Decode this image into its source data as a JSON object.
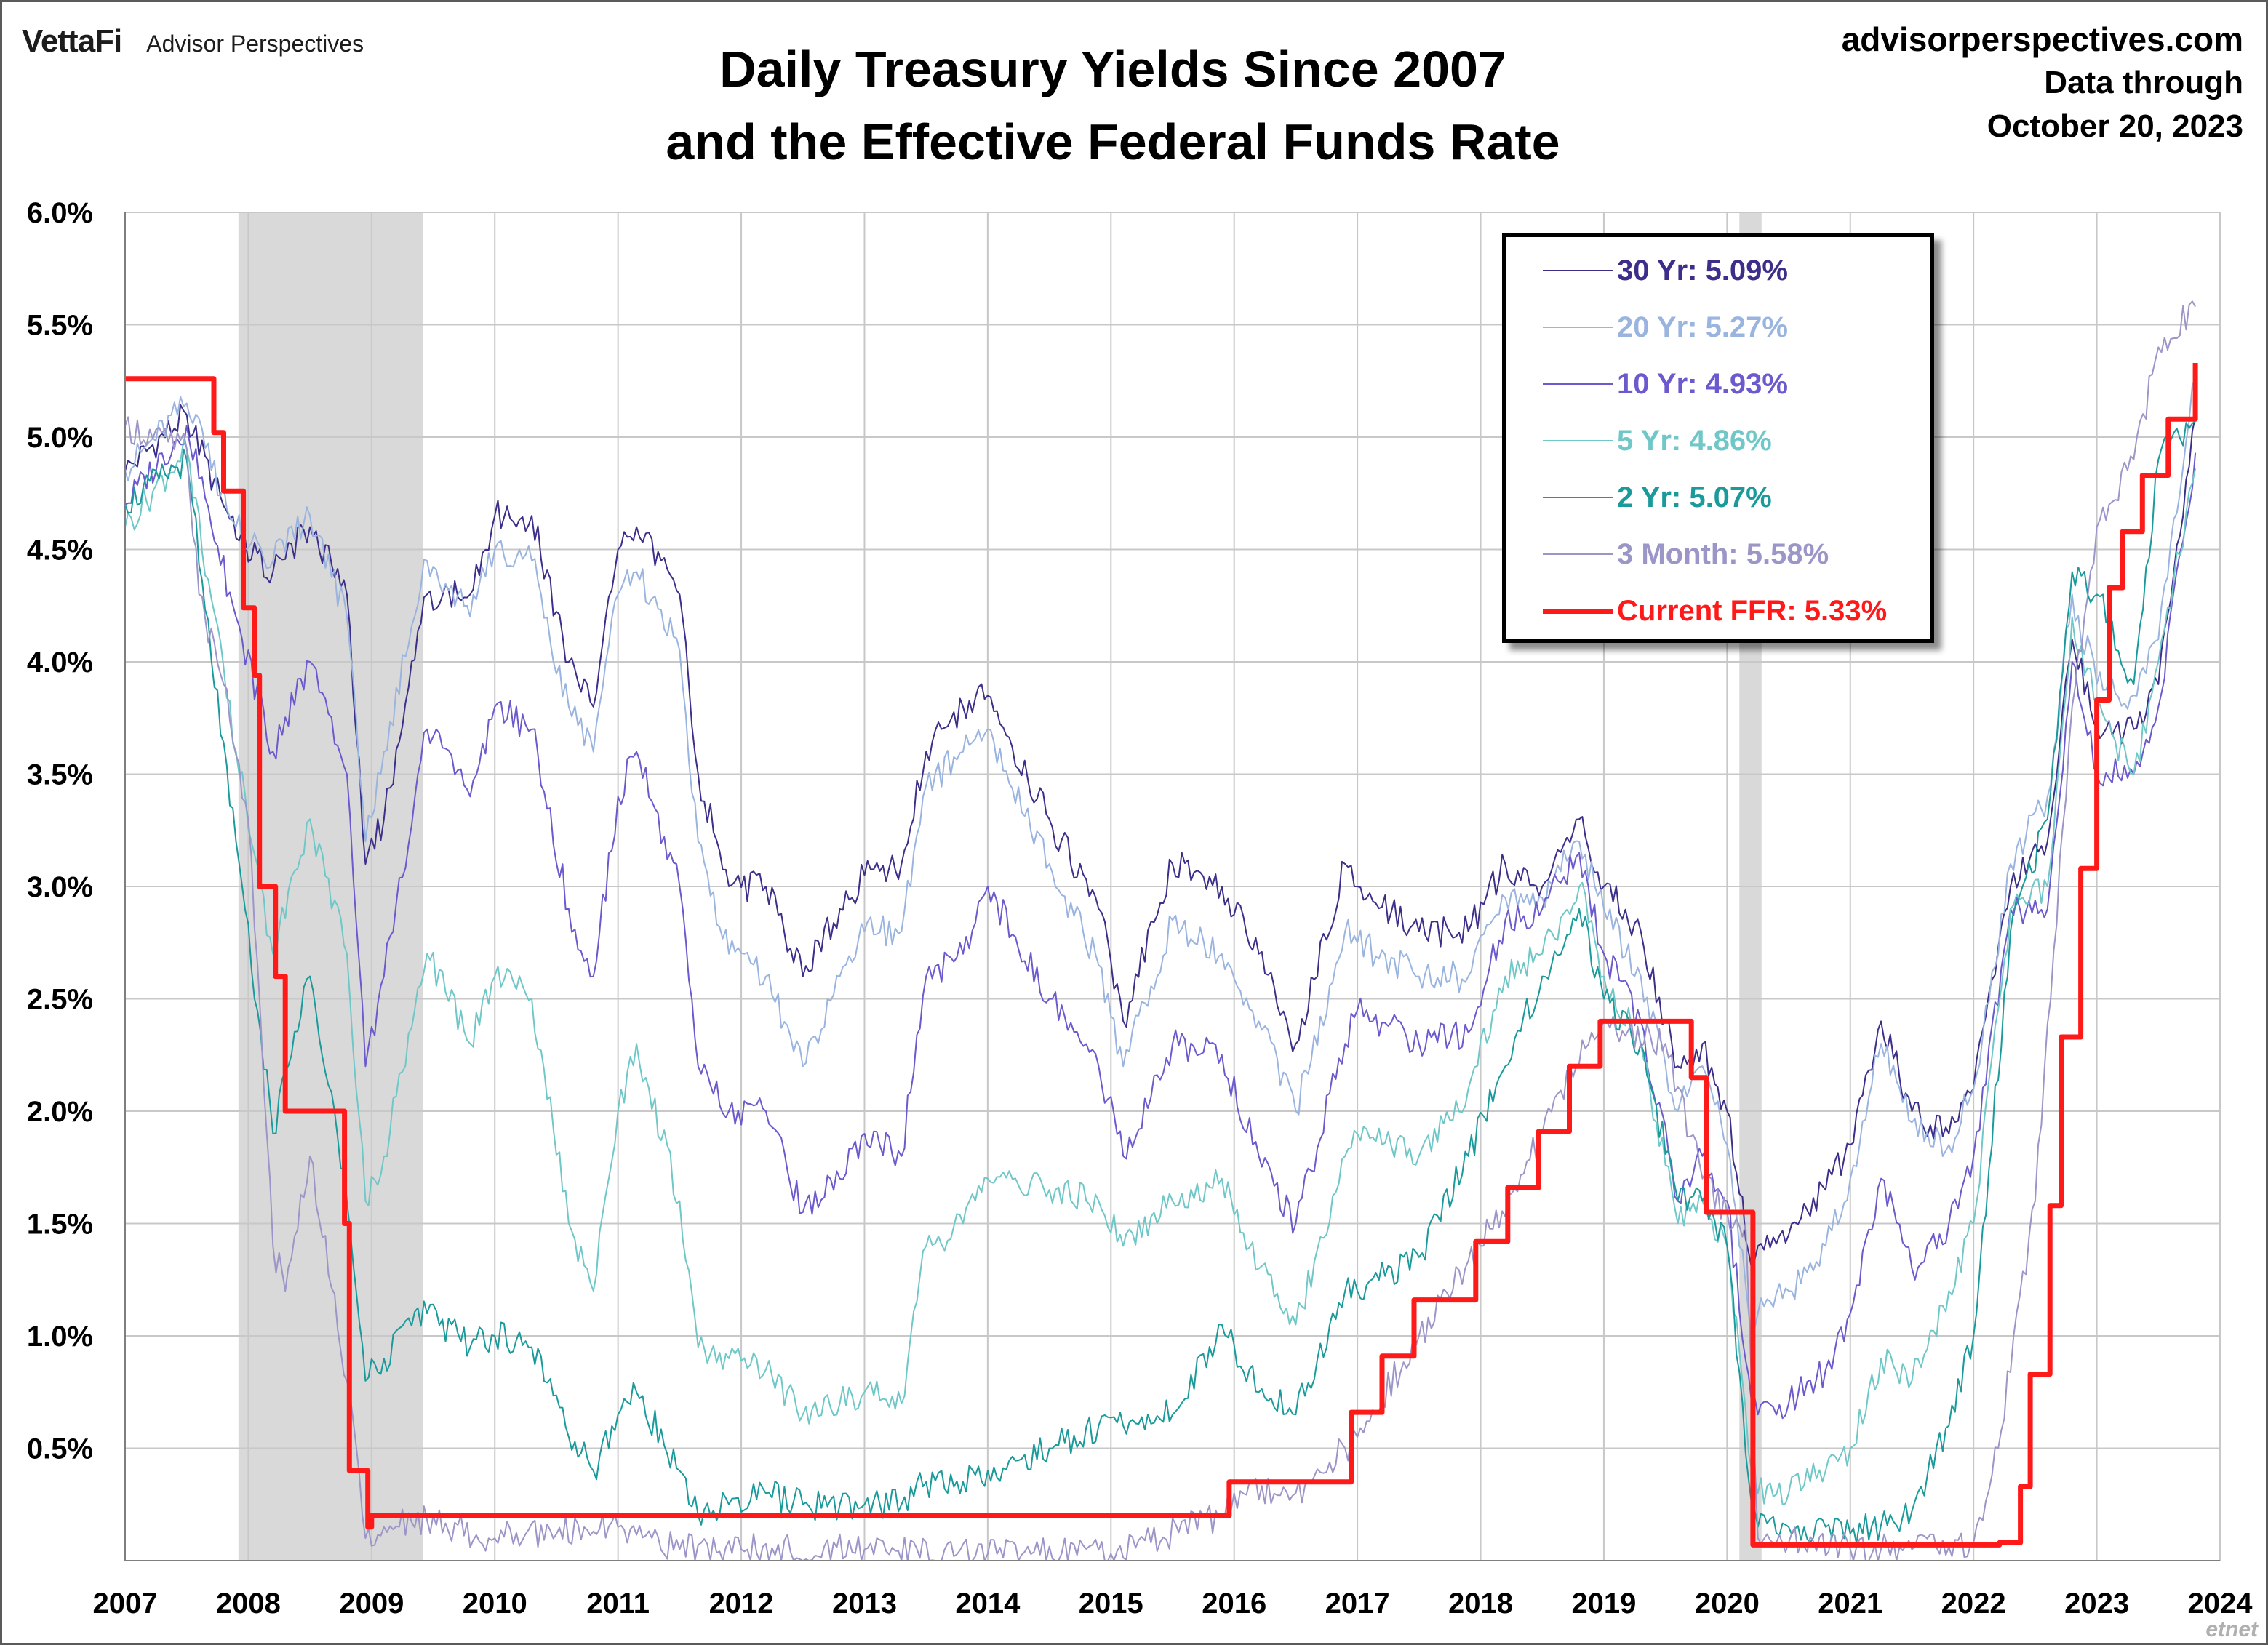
{
  "header": {
    "brand_name": "VettaFi",
    "brand_sub": "Advisor Perspectives",
    "title_line1": "Daily Treasury Yields Since 2007",
    "title_line2": "and the Effective Federal Funds Rate",
    "source_site": "advisorperspectives.com",
    "source_line2": "Data through",
    "source_line3": "October 20, 2023"
  },
  "watermark": "etnet",
  "chart_data": {
    "type": "line",
    "title": "Daily Treasury Yields Since 2007 and the Effective Federal Funds Rate",
    "xlabel": "",
    "ylabel": "",
    "xlim": [
      2007,
      2024
    ],
    "ylim": [
      0,
      6
    ],
    "x_ticks": [
      "2007",
      "2008",
      "2009",
      "2010",
      "2011",
      "2012",
      "2013",
      "2014",
      "2015",
      "2016",
      "2017",
      "2018",
      "2019",
      "2020",
      "2021",
      "2022",
      "2023",
      "2024"
    ],
    "y_ticks": [
      {
        "value": 0.5,
        "label": "0.5%"
      },
      {
        "value": 1.0,
        "label": "1.0%"
      },
      {
        "value": 1.5,
        "label": "1.5%"
      },
      {
        "value": 2.0,
        "label": "2.0%"
      },
      {
        "value": 2.5,
        "label": "2.5%"
      },
      {
        "value": 3.0,
        "label": "3.0%"
      },
      {
        "value": 3.5,
        "label": "3.5%"
      },
      {
        "value": 4.0,
        "label": "4.0%"
      },
      {
        "value": 4.5,
        "label": "4.5%"
      },
      {
        "value": 5.0,
        "label": "5.0%"
      },
      {
        "value": 5.5,
        "label": "5.5%"
      },
      {
        "value": 6.0,
        "label": "6.0%"
      }
    ],
    "grid": true,
    "legend_position": "top-right",
    "recessions": [
      [
        2007.92,
        2009.42
      ],
      [
        2020.1,
        2020.28
      ]
    ],
    "series": [
      {
        "name": "30 Yr: 5.09%",
        "color": "#3b2f8a",
        "width": 2,
        "x": [
          2007.0,
          2007.5,
          2007.9,
          2008.2,
          2008.5,
          2008.8,
          2008.95,
          2009.1,
          2009.45,
          2009.8,
          2010.0,
          2010.3,
          2010.6,
          2010.8,
          2011.0,
          2011.15,
          2011.5,
          2011.65,
          2011.9,
          2012.2,
          2012.5,
          2012.8,
          2013.0,
          2013.3,
          2013.5,
          2013.8,
          2014.0,
          2014.5,
          2014.9,
          2015.1,
          2015.5,
          2015.9,
          2016.2,
          2016.5,
          2016.9,
          2017.0,
          2017.5,
          2017.9,
          2018.2,
          2018.5,
          2018.8,
          2019.0,
          2019.3,
          2019.6,
          2019.8,
          2020.0,
          2020.2,
          2020.25,
          2020.5,
          2020.8,
          2021.0,
          2021.25,
          2021.5,
          2021.8,
          2022.0,
          2022.3,
          2022.6,
          2022.8,
          2023.0,
          2023.3,
          2023.5,
          2023.8
        ],
        "y": [
          4.85,
          5.1,
          4.55,
          4.4,
          4.6,
          4.3,
          3.1,
          3.3,
          4.3,
          4.3,
          4.65,
          4.65,
          4.0,
          3.8,
          4.5,
          4.6,
          4.3,
          3.5,
          3.0,
          3.0,
          2.6,
          2.9,
          3.05,
          3.1,
          3.6,
          3.8,
          3.85,
          3.3,
          2.9,
          2.4,
          3.1,
          3.0,
          2.7,
          2.3,
          3.1,
          3.0,
          2.8,
          2.8,
          3.1,
          3.0,
          3.3,
          3.0,
          2.8,
          2.2,
          2.3,
          2.0,
          1.3,
          1.4,
          1.45,
          1.65,
          1.85,
          2.4,
          2.0,
          1.9,
          2.1,
          3.0,
          3.2,
          4.1,
          3.7,
          3.7,
          3.9,
          5.09
        ]
      },
      {
        "name": "20 Yr: 5.27%",
        "color": "#9ab4e0",
        "width": 2,
        "x": [
          2007.0,
          2007.5,
          2007.9,
          2008.2,
          2008.5,
          2008.8,
          2008.95,
          2009.1,
          2009.45,
          2009.8,
          2010.0,
          2010.3,
          2010.6,
          2010.8,
          2011.0,
          2011.15,
          2011.5,
          2011.65,
          2011.9,
          2012.2,
          2012.5,
          2012.8,
          2013.0,
          2013.3,
          2013.5,
          2013.8,
          2014.0,
          2014.5,
          2014.9,
          2015.1,
          2015.5,
          2015.9,
          2016.2,
          2016.5,
          2016.9,
          2017.0,
          2017.5,
          2017.9,
          2018.2,
          2018.5,
          2018.8,
          2019.0,
          2019.3,
          2019.6,
          2019.8,
          2020.0,
          2020.2,
          2020.25,
          2020.5,
          2020.8,
          2021.0,
          2021.25,
          2021.5,
          2021.8,
          2022.0,
          2022.3,
          2022.6,
          2022.8,
          2023.0,
          2023.3,
          2023.5,
          2023.8
        ],
        "y": [
          4.85,
          5.15,
          4.6,
          4.45,
          4.65,
          4.2,
          3.2,
          3.6,
          4.45,
          4.2,
          4.5,
          4.45,
          3.8,
          3.6,
          4.3,
          4.4,
          4.05,
          3.2,
          2.7,
          2.6,
          2.2,
          2.6,
          2.8,
          2.8,
          3.45,
          3.6,
          3.7,
          3.1,
          2.65,
          2.2,
          2.85,
          2.7,
          2.4,
          2.0,
          2.8,
          2.75,
          2.6,
          2.6,
          2.95,
          2.95,
          3.2,
          2.9,
          2.6,
          2.0,
          2.2,
          1.85,
          1.0,
          1.1,
          1.2,
          1.4,
          1.7,
          2.3,
          1.95,
          1.85,
          2.1,
          3.1,
          3.4,
          4.3,
          3.9,
          3.85,
          4.1,
          5.27
        ]
      },
      {
        "name": "10 Yr: 4.93%",
        "color": "#6a5acd",
        "width": 2,
        "x": [
          2007.0,
          2007.5,
          2007.9,
          2008.2,
          2008.5,
          2008.8,
          2008.95,
          2009.1,
          2009.45,
          2009.8,
          2010.0,
          2010.3,
          2010.6,
          2010.8,
          2011.0,
          2011.15,
          2011.5,
          2011.65,
          2011.9,
          2012.2,
          2012.5,
          2012.8,
          2013.0,
          2013.3,
          2013.5,
          2013.8,
          2014.0,
          2014.5,
          2014.9,
          2015.1,
          2015.5,
          2015.9,
          2016.2,
          2016.5,
          2016.9,
          2017.0,
          2017.5,
          2017.9,
          2018.2,
          2018.5,
          2018.8,
          2019.0,
          2019.3,
          2019.6,
          2019.8,
          2020.0,
          2020.2,
          2020.25,
          2020.5,
          2020.8,
          2021.0,
          2021.25,
          2021.5,
          2021.8,
          2022.0,
          2022.3,
          2022.6,
          2022.8,
          2023.0,
          2023.3,
          2023.5,
          2023.8
        ],
        "y": [
          4.7,
          5.05,
          4.2,
          3.6,
          4.0,
          3.5,
          2.2,
          2.6,
          3.7,
          3.4,
          3.8,
          3.7,
          2.9,
          2.6,
          3.4,
          3.6,
          3.0,
          2.2,
          2.0,
          2.0,
          1.55,
          1.7,
          1.9,
          1.8,
          2.6,
          2.7,
          3.0,
          2.5,
          2.2,
          1.8,
          2.3,
          2.25,
          1.8,
          1.5,
          2.3,
          2.45,
          2.3,
          2.35,
          2.85,
          2.9,
          3.15,
          2.7,
          2.4,
          1.6,
          1.8,
          1.6,
          0.7,
          0.65,
          0.7,
          0.85,
          1.1,
          1.7,
          1.3,
          1.5,
          1.8,
          2.9,
          2.9,
          4.0,
          3.5,
          3.5,
          3.8,
          4.93
        ]
      },
      {
        "name": "5 Yr: 4.86%",
        "color": "#6fc7c7",
        "width": 2,
        "x": [
          2007.0,
          2007.5,
          2007.9,
          2008.2,
          2008.5,
          2008.8,
          2008.95,
          2009.1,
          2009.45,
          2009.8,
          2010.0,
          2010.3,
          2010.6,
          2010.8,
          2011.0,
          2011.15,
          2011.5,
          2011.65,
          2011.9,
          2012.2,
          2012.5,
          2012.8,
          2013.0,
          2013.3,
          2013.5,
          2013.8,
          2014.0,
          2014.5,
          2014.9,
          2015.1,
          2015.5,
          2015.9,
          2016.2,
          2016.5,
          2016.9,
          2017.0,
          2017.5,
          2017.9,
          2018.2,
          2018.5,
          2018.8,
          2019.0,
          2019.3,
          2019.6,
          2019.8,
          2020.0,
          2020.2,
          2020.25,
          2020.5,
          2020.8,
          2021.0,
          2021.25,
          2021.5,
          2021.8,
          2022.0,
          2022.3,
          2022.6,
          2022.8,
          2023.0,
          2023.3,
          2023.5,
          2023.8
        ],
        "y": [
          4.6,
          4.95,
          3.6,
          2.7,
          3.3,
          2.7,
          1.6,
          1.8,
          2.7,
          2.3,
          2.6,
          2.5,
          1.5,
          1.2,
          2.0,
          2.3,
          1.6,
          0.95,
          0.9,
          0.85,
          0.65,
          0.7,
          0.75,
          0.7,
          1.4,
          1.5,
          1.7,
          1.65,
          1.6,
          1.4,
          1.6,
          1.7,
          1.3,
          1.05,
          1.8,
          1.9,
          1.8,
          2.1,
          2.6,
          2.7,
          3.0,
          2.6,
          2.3,
          1.5,
          1.6,
          1.4,
          0.4,
          0.3,
          0.3,
          0.4,
          0.5,
          0.9,
          0.8,
          1.2,
          1.5,
          2.9,
          3.0,
          4.2,
          3.8,
          3.5,
          4.0,
          4.86
        ]
      },
      {
        "name": "2 Yr: 5.07%",
        "color": "#1a9a9a",
        "width": 2,
        "x": [
          2007.0,
          2007.5,
          2007.9,
          2008.2,
          2008.5,
          2008.8,
          2008.95,
          2009.1,
          2009.45,
          2009.8,
          2010.0,
          2010.3,
          2010.6,
          2010.8,
          2011.0,
          2011.15,
          2011.5,
          2011.65,
          2011.9,
          2012.2,
          2012.5,
          2012.8,
          2013.0,
          2013.3,
          2013.5,
          2013.8,
          2014.0,
          2014.5,
          2014.9,
          2015.1,
          2015.5,
          2015.9,
          2016.2,
          2016.5,
          2016.9,
          2017.0,
          2017.5,
          2017.9,
          2018.2,
          2018.5,
          2018.8,
          2019.0,
          2019.3,
          2019.6,
          2019.8,
          2020.0,
          2020.2,
          2020.25,
          2020.5,
          2020.8,
          2021.0,
          2021.25,
          2021.5,
          2021.8,
          2022.0,
          2022.3,
          2022.6,
          2022.8,
          2023.0,
          2023.3,
          2023.5,
          2023.8
        ],
        "y": [
          4.7,
          4.9,
          3.2,
          1.9,
          2.6,
          1.6,
          0.8,
          0.9,
          1.1,
          0.95,
          1.0,
          0.95,
          0.55,
          0.4,
          0.65,
          0.75,
          0.4,
          0.2,
          0.25,
          0.3,
          0.25,
          0.25,
          0.25,
          0.25,
          0.35,
          0.35,
          0.4,
          0.5,
          0.6,
          0.6,
          0.65,
          1.05,
          0.75,
          0.65,
          1.2,
          1.2,
          1.35,
          1.8,
          2.2,
          2.6,
          2.9,
          2.5,
          2.3,
          1.6,
          1.6,
          1.4,
          0.25,
          0.15,
          0.15,
          0.15,
          0.12,
          0.16,
          0.22,
          0.6,
          1.0,
          2.8,
          3.3,
          4.4,
          4.3,
          3.9,
          4.9,
          5.07
        ]
      },
      {
        "name": "3 Month: 5.58%",
        "color": "#9b96c8",
        "width": 2,
        "x": [
          2007.0,
          2007.5,
          2007.6,
          2007.8,
          2008.0,
          2008.2,
          2008.3,
          2008.5,
          2008.8,
          2008.95,
          2009.1,
          2009.45,
          2010.0,
          2011.0,
          2011.5,
          2012.0,
          2013.0,
          2014.0,
          2015.0,
          2015.9,
          2016.0,
          2016.5,
          2016.9,
          2017.0,
          2017.5,
          2018.0,
          2018.5,
          2018.9,
          2019.0,
          2019.5,
          2019.8,
          2020.0,
          2020.15,
          2020.25,
          2021.0,
          2021.5,
          2022.0,
          2022.2,
          2022.5,
          2022.8,
          2023.0,
          2023.3,
          2023.5,
          2023.8
        ],
        "y": [
          5.05,
          4.95,
          4.3,
          3.9,
          3.3,
          1.4,
          1.2,
          1.8,
          0.8,
          0.1,
          0.15,
          0.18,
          0.1,
          0.15,
          0.05,
          0.05,
          0.05,
          0.03,
          0.03,
          0.2,
          0.3,
          0.3,
          0.5,
          0.55,
          1.0,
          1.4,
          1.9,
          2.35,
          2.4,
          2.3,
          1.7,
          1.55,
          1.5,
          0.1,
          0.05,
          0.05,
          0.08,
          0.5,
          1.6,
          3.8,
          4.6,
          4.9,
          5.4,
          5.58
        ]
      },
      {
        "name": "Current FFR: 5.33%",
        "color": "#ff1a1a",
        "width": 7,
        "step": true,
        "x": [
          2007.0,
          2007.62,
          2007.72,
          2007.8,
          2007.96,
          2008.05,
          2008.09,
          2008.22,
          2008.3,
          2008.78,
          2008.82,
          2008.97,
          2009.0,
          2015.96,
          2016.95,
          2017.2,
          2017.46,
          2017.96,
          2018.22,
          2018.47,
          2018.72,
          2018.97,
          2019.58,
          2019.71,
          2019.83,
          2020.17,
          2020.21,
          2022.21,
          2022.38,
          2022.46,
          2022.62,
          2022.71,
          2022.87,
          2023.0,
          2023.1,
          2023.21,
          2023.37,
          2023.58,
          2023.8
        ],
        "y": [
          5.26,
          5.26,
          5.02,
          4.76,
          4.24,
          3.94,
          3.0,
          2.6,
          2.0,
          1.5,
          0.4,
          0.15,
          0.2,
          0.35,
          0.66,
          0.91,
          1.16,
          1.42,
          1.66,
          1.91,
          2.2,
          2.4,
          2.4,
          2.15,
          1.55,
          1.55,
          0.07,
          0.08,
          0.33,
          0.83,
          1.58,
          2.33,
          3.08,
          3.83,
          4.33,
          4.58,
          4.83,
          5.08,
          5.33
        ]
      }
    ]
  }
}
